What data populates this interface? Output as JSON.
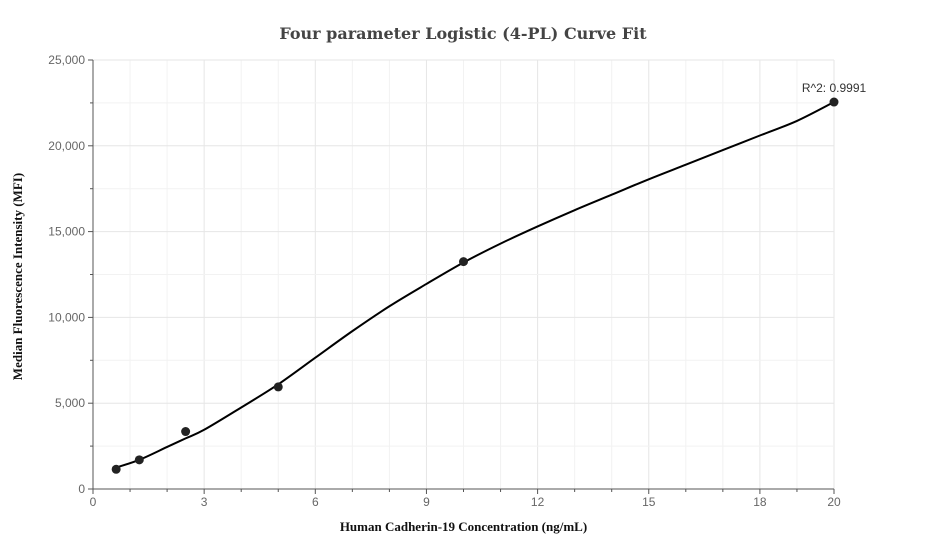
{
  "chart_data": {
    "type": "scatter",
    "title": "Four parameter Logistic (4-PL) Curve Fit",
    "xlabel": "Human Cadherin-19 Concentration (ng/mL)",
    "ylabel": "Median Fluorescence Intensity (MFI)",
    "xlim": [
      0,
      20
    ],
    "ylim": [
      0,
      25000
    ],
    "x_ticks": [
      0,
      3,
      6,
      9,
      12,
      15,
      18,
      20
    ],
    "x_tick_labels": [
      "0",
      "3",
      "6",
      "9",
      "12",
      "15",
      "18",
      "20"
    ],
    "y_ticks": [
      0,
      5000,
      10000,
      15000,
      20000,
      25000
    ],
    "y_tick_labels": [
      "0",
      "5,000",
      "10,000",
      "15,000",
      "20,000",
      "25,000"
    ],
    "grid": true,
    "legend": "none",
    "series": [
      {
        "kind": "points",
        "color": "#222222",
        "x": [
          0.625,
          1.25,
          2.5,
          5,
          10,
          20
        ],
        "y": [
          1150,
          1700,
          3350,
          5950,
          13250,
          22550
        ]
      },
      {
        "kind": "fit_curve",
        "color": "#000000",
        "x": [
          0.625,
          1.25,
          2,
          2.5,
          3,
          4,
          5,
          6,
          7,
          8,
          9,
          10,
          11,
          12,
          13,
          14,
          15,
          16,
          17,
          18,
          19,
          20
        ],
        "y": [
          1250,
          1700,
          2450,
          2950,
          3450,
          4750,
          6100,
          7650,
          9200,
          10650,
          11950,
          13200,
          14300,
          15300,
          16250,
          17150,
          18050,
          18900,
          19750,
          20600,
          21450,
          22550
        ]
      }
    ],
    "annotations": [
      {
        "text": "R^2: 0.9991",
        "x": 20,
        "y": 22550
      }
    ]
  }
}
